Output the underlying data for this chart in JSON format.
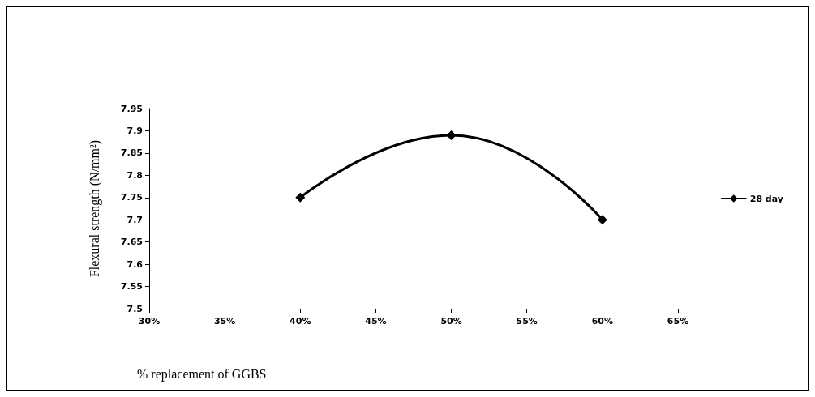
{
  "chart_data": {
    "type": "line",
    "xlabel": "% replacement of GGBS",
    "ylabel": "Flexural strength (N/mm²)",
    "x": [
      40,
      50,
      60
    ],
    "series": [
      {
        "name": "28 day",
        "color": "#000000",
        "values": [
          7.75,
          7.89,
          7.7
        ]
      }
    ],
    "xlim": [
      30,
      65
    ],
    "xticks": [
      {
        "value": 30,
        "label": "30%"
      },
      {
        "value": 35,
        "label": "35%"
      },
      {
        "value": 40,
        "label": "40%"
      },
      {
        "value": 45,
        "label": "45%"
      },
      {
        "value": 50,
        "label": "50%"
      },
      {
        "value": 55,
        "label": "55%"
      },
      {
        "value": 60,
        "label": "60%"
      },
      {
        "value": 65,
        "label": "65%"
      }
    ],
    "ylim": [
      7.5,
      7.95
    ],
    "yticks": [
      7.5,
      7.55,
      7.6,
      7.65,
      7.7,
      7.75,
      7.8,
      7.85,
      7.9,
      7.95
    ],
    "grid": false,
    "legend": "right",
    "marker": "diamond",
    "line_style": "solid"
  }
}
